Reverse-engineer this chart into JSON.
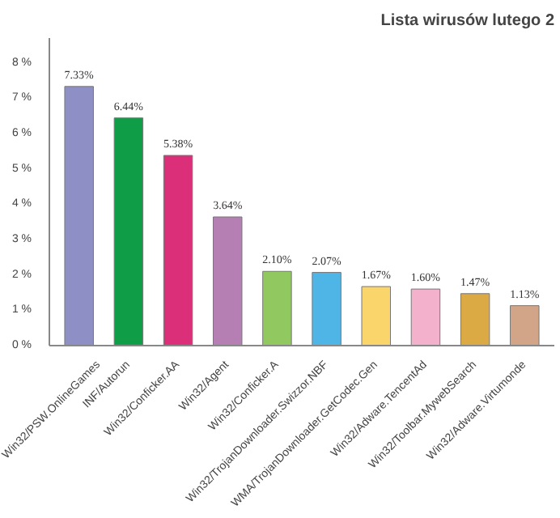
{
  "chart_data": {
    "type": "bar",
    "title": "Lista wirusów lutego 2",
    "categories": [
      "Win32/PSW.OnlineGames",
      "INF/Autorun",
      "Win32/Conficker.AA",
      "Win32/Agent",
      "Win32/Conficker.A",
      "Win32/TrojanDownloader.Swizzor.NBF",
      "WMA/TrojanDownloader.GetCodec.Gen",
      "Win32/Adware.TencentAd",
      "Win32/Toolbar.MywebSearch",
      "Win32/Adware.Virtumonde"
    ],
    "values": [
      7.33,
      6.44,
      5.38,
      3.64,
      2.1,
      2.07,
      1.67,
      1.6,
      1.47,
      1.13
    ],
    "value_labels": [
      "7.33%",
      "6.44%",
      "5.38%",
      "3.64%",
      "2.10%",
      "2.07%",
      "1.67%",
      "1.60%",
      "1.47%",
      "1.13%"
    ],
    "colors": [
      "#8e8fc4",
      "#0f9e47",
      "#dc2f7a",
      "#b57fb4",
      "#92c860",
      "#4fb5e6",
      "#f9d56c",
      "#f3b1cc",
      "#dcaa45",
      "#d2a589"
    ],
    "ylim": [
      0,
      8.7
    ],
    "yticks": [
      {
        "value": 0,
        "label": "0 %"
      },
      {
        "value": 1,
        "label": "1 %"
      },
      {
        "value": 2,
        "label": "2 %"
      },
      {
        "value": 3,
        "label": "3 %"
      },
      {
        "value": 4,
        "label": "4 %"
      },
      {
        "value": 5,
        "label": "5 %"
      },
      {
        "value": 6,
        "label": "6 %"
      },
      {
        "value": 7,
        "label": "7 %"
      },
      {
        "value": 8,
        "label": "8 %"
      }
    ],
    "grid": false
  }
}
